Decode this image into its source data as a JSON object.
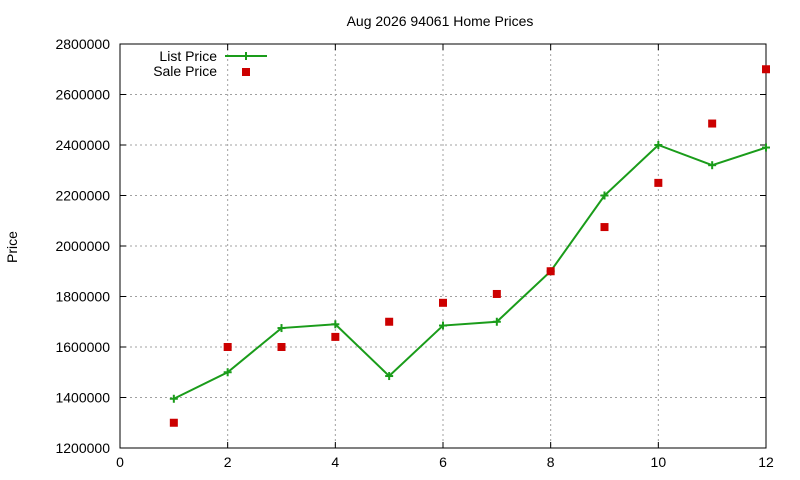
{
  "chart_data": {
    "type": "line",
    "title": "Aug 2026 94061 Home Prices",
    "xlabel": "",
    "ylabel": "Price",
    "xlim": [
      0,
      12
    ],
    "ylim": [
      1200000,
      2800000
    ],
    "xticks": [
      "0",
      "2",
      "4",
      "6",
      "8",
      "10",
      "12"
    ],
    "yticks": [
      "1200000",
      "1400000",
      "1600000",
      "1800000",
      "2000000",
      "2200000",
      "2400000",
      "2600000",
      "2800000"
    ],
    "grid": true,
    "legend_position": "top-left",
    "series": [
      {
        "name": "List Price",
        "kind": "line",
        "marker": "plus",
        "color": "#1a9c1a",
        "x": [
          1,
          2,
          3,
          4,
          5,
          6,
          7,
          8,
          9,
          10,
          11,
          12
        ],
        "y": [
          1395000,
          1500000,
          1675000,
          1690000,
          1485000,
          1685000,
          1700000,
          1900000,
          2200000,
          2400000,
          2320000,
          2390000
        ]
      },
      {
        "name": "Sale Price",
        "kind": "scatter",
        "marker": "square",
        "color": "#cc0000",
        "x": [
          1,
          2,
          3,
          4,
          5,
          6,
          7,
          8,
          9,
          10,
          11,
          12
        ],
        "y": [
          1300000,
          1600000,
          1600000,
          1640000,
          1700000,
          1775000,
          1810000,
          1900000,
          2075000,
          2250000,
          2485000,
          2700000
        ]
      }
    ]
  }
}
